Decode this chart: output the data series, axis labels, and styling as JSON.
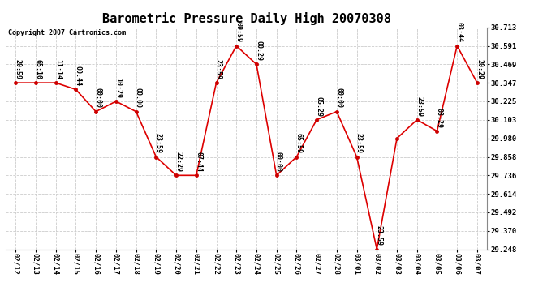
{
  "title": "Barometric Pressure Daily High 20070308",
  "copyright": "Copyright 2007 Cartronics.com",
  "dates": [
    "02/12",
    "02/13",
    "02/14",
    "02/15",
    "02/16",
    "02/17",
    "02/18",
    "02/19",
    "02/20",
    "02/21",
    "02/22",
    "02/23",
    "02/24",
    "02/25",
    "02/26",
    "02/27",
    "02/28",
    "03/01",
    "03/02",
    "03/03",
    "03/04",
    "03/05",
    "03/06",
    "03/07"
  ],
  "values": [
    30.347,
    30.347,
    30.347,
    30.303,
    30.157,
    30.225,
    30.157,
    29.858,
    29.736,
    29.736,
    30.347,
    30.591,
    30.469,
    29.736,
    29.858,
    30.103,
    30.157,
    29.858,
    29.248,
    29.98,
    30.103,
    30.028,
    30.591,
    30.347
  ],
  "point_labels": [
    "20:59",
    "65:10",
    "11:14",
    "00:44",
    "00:00",
    "10:29",
    "00:00",
    "23:59",
    "22:29",
    "07:44",
    "23:59",
    "09:59",
    "00:29",
    "00:00",
    "65:59",
    "05:29",
    "00:00",
    "23:59",
    "23:59",
    "",
    "23:59",
    "08:29",
    "03:44",
    "20:29"
  ],
  "line_color": "#dd0000",
  "marker_color": "#cc0000",
  "bg_color": "#ffffff",
  "grid_color": "#cccccc",
  "ylim": [
    29.248,
    30.713
  ],
  "yticks": [
    29.248,
    29.37,
    29.492,
    29.614,
    29.736,
    29.858,
    29.98,
    30.103,
    30.225,
    30.347,
    30.469,
    30.591,
    30.713
  ],
  "title_fontsize": 11,
  "tick_fontsize": 6.5,
  "label_fontsize": 6,
  "copyright_fontsize": 6
}
